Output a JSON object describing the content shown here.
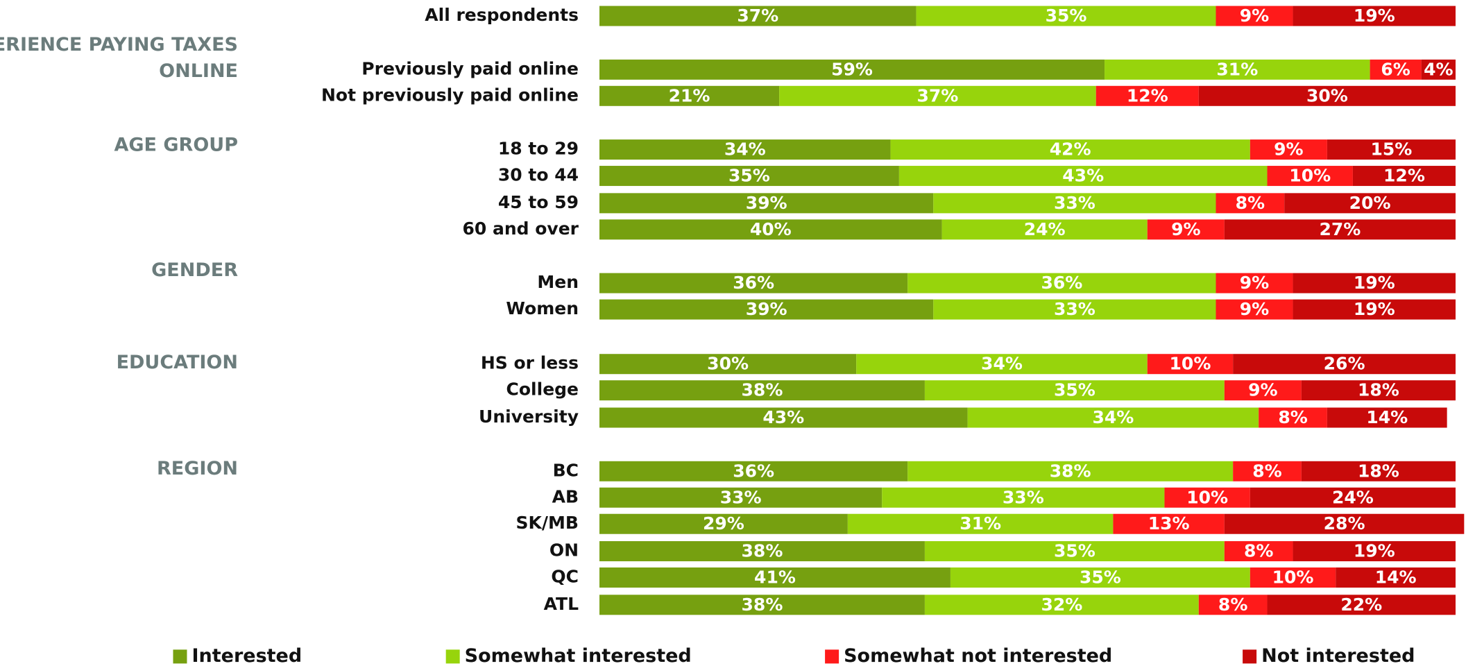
{
  "chart_data": {
    "type": "stacked-barh",
    "categories": [
      "All respondents",
      "Previously paid online",
      "Not previously paid online",
      "18 to 29",
      "30 to 44",
      "45 to 59",
      "60 and over",
      "Men",
      "Women",
      "HS or less",
      "College",
      "University",
      "BC",
      "AB",
      "SK/MB",
      "ON",
      "QC",
      "ATL"
    ],
    "group_labels": [
      "EXPERIENCE PAYING TAXES ONLINE",
      "AGE GROUP",
      "GENDER",
      "EDUCATION",
      "REGION"
    ],
    "xlim": [
      0,
      100
    ],
    "series": [
      {
        "name": "Interested",
        "color": "#76a010",
        "values": [
          37,
          59,
          21,
          34,
          35,
          39,
          40,
          36,
          39,
          30,
          38,
          43,
          36,
          33,
          29,
          38,
          41,
          38
        ],
        "value_labels": [
          "37%",
          "59%",
          "21%",
          "34%",
          "35%",
          "39%",
          "40%",
          "36%",
          "39%",
          "30%",
          "38%",
          "43%",
          "36%",
          "33%",
          "29%",
          "38%",
          "41%",
          "38%"
        ]
      },
      {
        "name": "Somewhat interested",
        "color": "#97d40c",
        "values": [
          35,
          31,
          37,
          42,
          43,
          33,
          24,
          36,
          33,
          34,
          35,
          34,
          38,
          33,
          31,
          35,
          35,
          32
        ],
        "value_labels": [
          "35%",
          "31%",
          "37%",
          "42%",
          "43%",
          "33%",
          "24%",
          "36%",
          "33%",
          "34%",
          "35%",
          "34%",
          "38%",
          "33%",
          "31%",
          "35%",
          "35%",
          "32%"
        ]
      },
      {
        "name": "Somewhat not interested",
        "color": "#ff1a1a",
        "values": [
          9,
          6,
          12,
          9,
          10,
          8,
          9,
          9,
          9,
          10,
          9,
          8,
          8,
          10,
          13,
          8,
          10,
          8
        ],
        "value_labels": [
          "9%",
          "6%",
          "12%",
          "9%",
          "10%",
          "8%",
          "9%",
          "9%",
          "9%",
          "10%",
          "9%",
          "8%",
          "8%",
          "10%",
          "13%",
          "8%",
          "10%",
          "8%"
        ]
      },
      {
        "name": "Not interested",
        "color": "#c80a0a",
        "values": [
          19,
          4,
          30,
          15,
          12,
          20,
          27,
          19,
          19,
          26,
          18,
          14,
          18,
          24,
          28,
          19,
          14,
          22
        ],
        "value_labels": [
          "19%",
          "4%",
          "30%",
          "15%",
          "12%",
          "20%",
          "27%",
          "19%",
          "19%",
          "26%",
          "18%",
          "14%",
          "18%",
          "24%",
          "28%",
          "19%",
          "14%",
          "22%"
        ]
      }
    ]
  }
}
